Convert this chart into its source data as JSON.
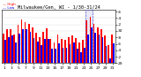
{
  "title": "Milwaukee/Gen, WI - 1/30-31/24",
  "days": [
    1,
    2,
    3,
    4,
    5,
    6,
    7,
    8,
    9,
    10,
    11,
    12,
    13,
    14,
    15,
    16,
    17,
    18,
    19,
    20,
    21,
    22,
    23,
    24,
    25,
    26,
    27,
    28,
    29,
    30,
    31
  ],
  "high": [
    29.92,
    30.05,
    30.05,
    29.89,
    30.18,
    30.35,
    30.28,
    30.22,
    30.12,
    29.95,
    29.82,
    29.98,
    30.08,
    29.75,
    29.65,
    29.88,
    29.75,
    29.72,
    29.82,
    29.85,
    29.78,
    29.65,
    29.72,
    30.32,
    30.45,
    30.22,
    30.12,
    30.05,
    29.85,
    29.55,
    29.88
  ],
  "low": [
    29.72,
    29.82,
    29.85,
    29.65,
    29.92,
    30.05,
    30.05,
    29.98,
    29.78,
    29.68,
    29.55,
    29.75,
    29.75,
    29.45,
    29.45,
    29.62,
    29.48,
    29.48,
    29.58,
    29.65,
    29.45,
    29.35,
    29.48,
    29.88,
    30.12,
    29.95,
    29.88,
    29.82,
    29.52,
    29.15,
    29.62
  ],
  "baseline": 29.0,
  "high_color": "#ff0000",
  "low_color": "#0000ff",
  "bg_color": "#ffffff",
  "yticks": [
    29.0,
    29.2,
    29.4,
    29.6,
    29.8,
    30.0,
    30.2,
    30.4,
    30.6
  ],
  "ytick_labels": [
    "29",
    ".2",
    ".4",
    ".6",
    ".8",
    "30",
    ".2",
    ".4",
    ".6"
  ],
  "ylim": [
    29.0,
    30.65
  ],
  "xtick_positions": [
    1,
    3,
    5,
    7,
    9,
    11,
    13,
    15,
    17,
    19,
    21,
    23,
    25,
    27,
    29,
    31
  ],
  "highlight_start": 23.5,
  "highlight_end": 25.5,
  "highlight_color": "#aaaaee"
}
